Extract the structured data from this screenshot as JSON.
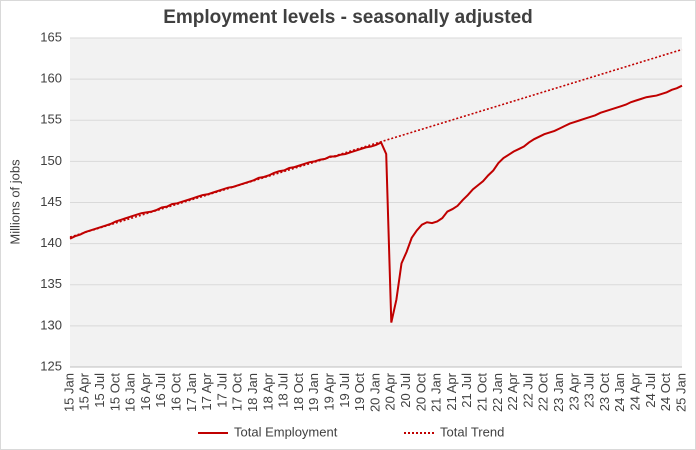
{
  "chart_data": {
    "type": "line",
    "title": "Employment levels - seasonally adjusted",
    "y_label": "Millions of jobs",
    "categories": [
      "15 Jan",
      null,
      null,
      "15 Apr",
      null,
      null,
      "15 Jul",
      null,
      null,
      "15 Oct",
      null,
      null,
      "16 Jan",
      null,
      null,
      "16 Apr",
      null,
      null,
      "16 Jul",
      null,
      null,
      "16 Oct",
      null,
      null,
      "17 Jan",
      null,
      null,
      "17 Apr",
      null,
      null,
      "17 Jul",
      null,
      null,
      "17 Oct",
      null,
      null,
      "18 Jan",
      null,
      null,
      "18 Apr",
      null,
      null,
      "18 Jul",
      null,
      null,
      "18 Oct",
      null,
      null,
      "19 Jan",
      null,
      null,
      "19 Apr",
      null,
      null,
      "19 Jul",
      null,
      null,
      "19 Oct",
      null,
      null,
      "20 Jan",
      null,
      null,
      "20 Apr",
      null,
      null,
      "20 Jul",
      null,
      null,
      "20 Oct",
      null,
      null,
      "21 Jan",
      null,
      null,
      "21 Apr",
      null,
      null,
      "21 Jul",
      null,
      null,
      "21 Oct",
      null,
      null,
      "22 Jan",
      null,
      null,
      "22 Apr",
      null,
      null,
      "22 Jul",
      null,
      null,
      "22 Oct",
      null,
      null,
      "23 Jan",
      null,
      null,
      "23 Apr",
      null,
      null,
      "23 Jul",
      null,
      null,
      "23 Oct",
      null,
      null,
      "24 Jan",
      null,
      null,
      "24 Apr",
      null,
      null,
      "24 Jul",
      null,
      null,
      "24 Oct",
      null,
      null,
      "25 Jan"
    ],
    "series": [
      {
        "name": "Total Employment",
        "color": "#c00000",
        "line_style": "solid",
        "values": [
          140.6,
          140.9,
          141.1,
          141.4,
          141.6,
          141.8,
          142.0,
          142.2,
          142.4,
          142.7,
          142.9,
          143.1,
          143.3,
          143.5,
          143.7,
          143.8,
          143.9,
          144.1,
          144.4,
          144.5,
          144.8,
          144.9,
          145.1,
          145.3,
          145.5,
          145.7,
          145.9,
          146.0,
          146.2,
          146.4,
          146.6,
          146.8,
          146.9,
          147.1,
          147.3,
          147.5,
          147.7,
          148.0,
          148.1,
          148.3,
          148.6,
          148.8,
          148.9,
          149.2,
          149.3,
          149.5,
          149.7,
          149.9,
          150.0,
          150.2,
          150.3,
          150.6,
          150.6,
          150.8,
          150.9,
          151.1,
          151.3,
          151.5,
          151.7,
          151.8,
          152.0,
          152.3,
          150.9,
          130.4,
          133.2,
          137.6,
          139.0,
          140.7,
          141.6,
          142.3,
          142.6,
          142.5,
          142.7,
          143.1,
          143.9,
          144.2,
          144.6,
          145.3,
          145.9,
          146.6,
          147.1,
          147.6,
          148.3,
          148.9,
          149.8,
          150.4,
          150.8,
          151.2,
          151.5,
          151.8,
          152.3,
          152.7,
          153.0,
          153.3,
          153.5,
          153.7,
          154.0,
          154.3,
          154.6,
          154.8,
          155.0,
          155.2,
          155.4,
          155.6,
          155.9,
          156.1,
          156.3,
          156.5,
          156.7,
          156.9,
          157.2,
          157.4,
          157.6,
          157.8,
          157.9,
          158.0,
          158.2,
          158.4,
          158.7,
          158.9,
          159.2
        ]
      },
      {
        "name": "Total Trend",
        "color": "#c00000",
        "line_style": "dotted",
        "values": [
          140.8,
          140.99,
          141.18,
          141.37,
          141.56,
          141.75,
          141.94,
          142.13,
          142.32,
          142.51,
          142.7,
          142.89,
          143.08,
          143.27,
          143.46,
          143.65,
          143.84,
          144.03,
          144.22,
          144.41,
          144.6,
          144.79,
          144.98,
          145.17,
          145.36,
          145.55,
          145.74,
          145.93,
          146.12,
          146.31,
          146.5,
          146.69,
          146.88,
          147.07,
          147.26,
          147.45,
          147.64,
          147.83,
          148.02,
          148.21,
          148.4,
          148.59,
          148.78,
          148.97,
          149.16,
          149.35,
          149.54,
          149.73,
          149.92,
          150.11,
          150.3,
          150.49,
          150.68,
          150.87,
          151.06,
          151.25,
          151.44,
          151.63,
          151.82,
          152.01,
          152.2,
          152.39,
          152.58,
          152.77,
          152.96,
          153.15,
          153.34,
          153.53,
          153.72,
          153.91,
          154.1,
          154.29,
          154.48,
          154.67,
          154.86,
          155.05,
          155.24,
          155.43,
          155.62,
          155.81,
          156.0,
          156.19,
          156.38,
          156.57,
          156.76,
          156.95,
          157.14,
          157.33,
          157.52,
          157.71,
          157.9,
          158.09,
          158.28,
          158.47,
          158.66,
          158.85,
          159.04,
          159.23,
          159.42,
          159.61,
          159.8,
          159.99,
          160.18,
          160.37,
          160.56,
          160.75,
          160.94,
          161.13,
          161.32,
          161.51,
          161.7,
          161.89,
          162.08,
          162.27,
          162.46,
          162.65,
          162.84,
          163.03,
          163.22,
          163.41,
          163.6
        ]
      }
    ],
    "ylim": [
      125,
      165
    ],
    "yticks": [
      125,
      130,
      135,
      140,
      145,
      150,
      155,
      160,
      165
    ],
    "grid": true,
    "legend": "bottom"
  }
}
